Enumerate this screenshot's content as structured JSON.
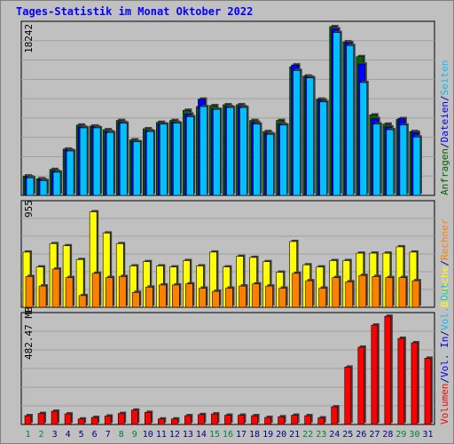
{
  "title": "Tages-Statistik im Monat Oktober 2022",
  "colors": {
    "bg": "#c0c0c0",
    "panel": "#c0c0c0",
    "grid": "#a0a0a0",
    "anfragen": "#006400",
    "dateien": "#0000ff",
    "seiten": "#00c0ff",
    "besuche": "#ffff00",
    "rechner": "#ff8000",
    "volumen": "#ff0000",
    "weekend_label": "#008040",
    "weekday_label": "#000080"
  },
  "chart_data": [
    {
      "type": "bar",
      "ymax_label": "18242",
      "ymax": 18242,
      "series": [
        {
          "name": "Anfragen",
          "values": [
            2100,
            1800,
            2800,
            5000,
            7600,
            7500,
            7100,
            8100,
            6000,
            7200,
            7900,
            8100,
            9200,
            9600,
            9700,
            9800,
            9800,
            8100,
            6900,
            8100,
            13900,
            12900,
            10400,
            18242,
            16600,
            15000,
            8700,
            7700,
            8200,
            6900,
            0
          ]
        },
        {
          "name": "Dateien",
          "values": [
            2000,
            1700,
            2600,
            4900,
            7400,
            7400,
            6900,
            7900,
            5800,
            7000,
            7700,
            7900,
            8800,
            10400,
            9300,
            9600,
            9600,
            7900,
            6700,
            7700,
            14100,
            12800,
            10300,
            18000,
            16500,
            14200,
            8300,
            7400,
            8300,
            6800,
            0
          ]
        },
        {
          "name": "Seiten",
          "values": [
            1900,
            1600,
            2500,
            4800,
            7300,
            7300,
            6800,
            7800,
            5800,
            6900,
            7700,
            7800,
            8500,
            9600,
            9300,
            9500,
            9500,
            7700,
            6600,
            7600,
            13500,
            12700,
            10100,
            17600,
            16200,
            12200,
            7700,
            7100,
            7600,
            6300,
            0
          ]
        }
      ]
    },
    {
      "type": "bar",
      "ymax_label": "955",
      "ymax": 955,
      "series": [
        {
          "name": "Besuche",
          "values": [
            520,
            380,
            600,
            580,
            450,
            900,
            700,
            600,
            390,
            430,
            390,
            380,
            440,
            390,
            520,
            380,
            480,
            470,
            430,
            330,
            620,
            400,
            380,
            440,
            440,
            510,
            510,
            510,
            570,
            520,
            0
          ]
        },
        {
          "name": "Rechner",
          "values": [
            290,
            200,
            360,
            280,
            110,
            320,
            280,
            290,
            140,
            190,
            210,
            210,
            220,
            180,
            150,
            180,
            200,
            220,
            200,
            180,
            320,
            250,
            180,
            280,
            240,
            300,
            290,
            280,
            280,
            250,
            0
          ]
        }
      ]
    },
    {
      "type": "bar",
      "ymax_label": "482.47 MB",
      "ymax": 482.47,
      "series": [
        {
          "name": "Volumen",
          "values": [
            40,
            50,
            60,
            48,
            25,
            32,
            38,
            50,
            65,
            55,
            25,
            25,
            40,
            45,
            48,
            42,
            42,
            40,
            32,
            35,
            42,
            40,
            30,
            80,
            260,
            350,
            450,
            490,
            390,
            370,
            300
          ]
        }
      ]
    }
  ],
  "days": [
    "1",
    "2",
    "3",
    "4",
    "5",
    "6",
    "7",
    "8",
    "9",
    "10",
    "11",
    "12",
    "13",
    "14",
    "15",
    "16",
    "17",
    "18",
    "19",
    "20",
    "21",
    "22",
    "23",
    "24",
    "25",
    "26",
    "27",
    "28",
    "29",
    "30",
    "31"
  ],
  "weekend_days": [
    1,
    2,
    8,
    9,
    15,
    16,
    22,
    23,
    29,
    30
  ],
  "legend": {
    "top": [
      {
        "text": "Anfragen",
        "color": "#006400"
      },
      {
        "text": "/",
        "color": "#000080"
      },
      {
        "text": "Dateien",
        "color": "#0000ff"
      },
      {
        "text": "/",
        "color": "#000080"
      },
      {
        "text": "Seiten",
        "color": "#00c0ff"
      }
    ],
    "mid": [
      {
        "text": "Besuche",
        "color": "#ffff00"
      },
      {
        "text": "/",
        "color": "#000080"
      },
      {
        "text": "Rechner",
        "color": "#ff8000"
      }
    ],
    "bottom": [
      {
        "text": "Volumen",
        "color": "#ff0000"
      },
      {
        "text": "/",
        "color": "#000080"
      },
      {
        "text": "Vol. In",
        "color": "#0000ff"
      },
      {
        "text": "/",
        "color": "#000080"
      },
      {
        "text": "Vol. Out",
        "color": "#00c0ff"
      }
    ]
  }
}
